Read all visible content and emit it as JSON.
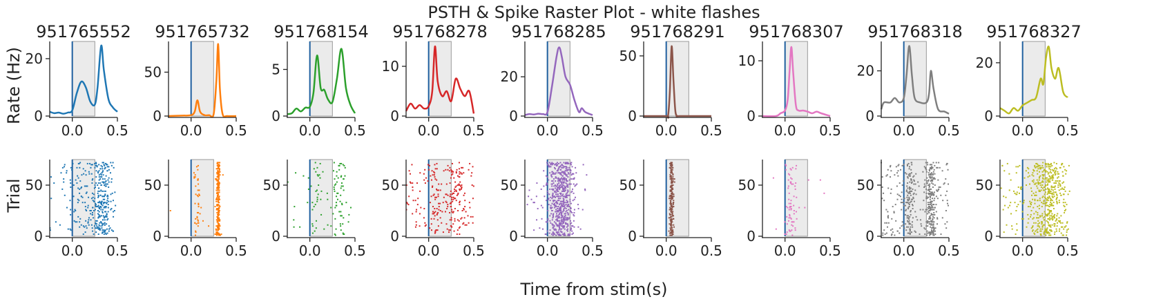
{
  "figure": {
    "suptitle": "PSTH & Spike Raster Plot - white flashes",
    "xlabel": "Time from stim(s)",
    "ylabel_top": "Rate (Hz)",
    "ylabel_bottom": "Trial"
  },
  "chart_data": {
    "type": "line",
    "x_range": [
      -0.25,
      0.5
    ],
    "x_ticks": [
      0.0,
      0.5
    ],
    "x_tick_labels": [
      "0.0",
      "0.5"
    ],
    "stim_window": [
      0.0,
      0.25
    ],
    "raster_ylim": [
      0,
      75
    ],
    "raster_yticks": [
      0,
      50
    ],
    "units": [
      {
        "id": "951765552",
        "color": "#1f77b4",
        "ylim": [
          0,
          26
        ],
        "yticks": [
          0,
          20
        ],
        "psth_t": [
          -0.25,
          -0.2,
          -0.15,
          -0.1,
          -0.05,
          0.0,
          0.05,
          0.1,
          0.15,
          0.2,
          0.25,
          0.28,
          0.32,
          0.35,
          0.4,
          0.45,
          0.5
        ],
        "psth_v": [
          1.5,
          1,
          1.2,
          0.8,
          1.2,
          2,
          8,
          12,
          10,
          5,
          4,
          10,
          24.5,
          16,
          6,
          3,
          1.5
        ],
        "raster": {
          "n": 380,
          "base": 0.15,
          "peaks": [
            [
              0.1,
              0.07,
              0.25
            ],
            [
              0.33,
              0.06,
              0.45
            ]
          ]
        }
      },
      {
        "id": "951765732",
        "color": "#ff7f0e",
        "ylim": [
          0,
          85
        ],
        "yticks": [
          0,
          50
        ],
        "psth_t": [
          -0.25,
          -0.1,
          0.0,
          0.04,
          0.07,
          0.1,
          0.15,
          0.2,
          0.25,
          0.28,
          0.3,
          0.32,
          0.35,
          0.4,
          0.5
        ],
        "psth_v": [
          0,
          0.5,
          1,
          5,
          18,
          5,
          1,
          1,
          2,
          40,
          82,
          30,
          2,
          0,
          0
        ],
        "raster": {
          "n": 300,
          "base": 0.02,
          "peaks": [
            [
              0.07,
              0.02,
              0.15
            ],
            [
              0.3,
              0.01,
              0.83
            ]
          ]
        }
      },
      {
        "id": "951768154",
        "color": "#2ca02c",
        "ylim": [
          0,
          8
        ],
        "yticks": [
          0,
          5
        ],
        "psth_t": [
          -0.25,
          -0.2,
          -0.15,
          -0.1,
          -0.05,
          0.0,
          0.04,
          0.08,
          0.12,
          0.16,
          0.2,
          0.25,
          0.3,
          0.35,
          0.4,
          0.45,
          0.5
        ],
        "psth_v": [
          0.2,
          0.3,
          0.8,
          0.5,
          0.9,
          1,
          2.5,
          6.5,
          3,
          2.8,
          1.8,
          1.5,
          4,
          7.2,
          3,
          1.2,
          0.3
        ],
        "raster": {
          "n": 110,
          "base": 0.2,
          "peaks": [
            [
              0.08,
              0.04,
              0.3
            ],
            [
              0.33,
              0.05,
              0.5
            ]
          ]
        }
      },
      {
        "id": "951768278",
        "color": "#d62728",
        "ylim": [
          0,
          15
        ],
        "yticks": [
          0,
          10
        ],
        "psth_t": [
          -0.25,
          -0.2,
          -0.15,
          -0.1,
          -0.05,
          0.0,
          0.04,
          0.07,
          0.1,
          0.15,
          0.2,
          0.25,
          0.3,
          0.35,
          0.4,
          0.45,
          0.5
        ],
        "psth_v": [
          1,
          2.5,
          1.5,
          2.2,
          1.5,
          2,
          5,
          14,
          7,
          4,
          5,
          3,
          7.5,
          5.5,
          4,
          5,
          0.5
        ],
        "raster": {
          "n": 260,
          "base": 0.45,
          "peaks": [
            [
              0.07,
              0.03,
              0.2
            ],
            [
              0.3,
              0.06,
              0.35
            ]
          ]
        }
      },
      {
        "id": "951768285",
        "color": "#9467bd",
        "ylim": [
          0,
          38
        ],
        "yticks": [
          0,
          20
        ],
        "psth_t": [
          -0.25,
          -0.2,
          -0.15,
          -0.1,
          -0.05,
          0.0,
          0.05,
          0.1,
          0.13,
          0.16,
          0.2,
          0.25,
          0.3,
          0.35,
          0.38,
          0.42,
          0.5
        ],
        "psth_v": [
          0.5,
          1,
          0.8,
          1.2,
          1,
          2,
          15,
          30,
          35,
          30,
          20,
          16,
          8,
          2,
          4,
          2,
          0.5
        ],
        "raster": {
          "n": 650,
          "base": 0.05,
          "peaks": [
            [
              0.15,
              0.08,
              0.95
            ]
          ]
        }
      },
      {
        "id": "951768291",
        "color": "#8c564b",
        "ylim": [
          0,
          62
        ],
        "yticks": [
          0,
          50
        ],
        "psth_t": [
          -0.25,
          0.0,
          0.02,
          0.04,
          0.06,
          0.08,
          0.1,
          0.12,
          0.15,
          0.5
        ],
        "psth_v": [
          0,
          0,
          0,
          20,
          58,
          30,
          5,
          0,
          0,
          0
        ],
        "raster": {
          "n": 230,
          "base": 0.0,
          "peaks": [
            [
              0.06,
              0.012,
              1.0
            ]
          ]
        }
      },
      {
        "id": "951768307",
        "color": "#e377c2",
        "ylim": [
          0,
          13.5
        ],
        "yticks": [
          0,
          10
        ],
        "psth_t": [
          -0.25,
          -0.1,
          -0.05,
          0.0,
          0.03,
          0.05,
          0.07,
          0.09,
          0.12,
          0.15,
          0.2,
          0.25,
          0.3,
          0.35,
          0.4,
          0.5
        ],
        "psth_v": [
          0,
          0,
          0.5,
          1,
          3,
          8,
          12.5,
          8,
          2,
          1,
          1,
          0.8,
          0.5,
          0.8,
          0.5,
          0
        ],
        "raster": {
          "n": 75,
          "base": 0.1,
          "peaks": [
            [
              0.07,
              0.03,
              0.9
            ]
          ]
        }
      },
      {
        "id": "951768318",
        "color": "#7f7f7f",
        "ylim": [
          0,
          33
        ],
        "yticks": [
          0,
          20
        ],
        "psth_t": [
          -0.25,
          -0.22,
          -0.15,
          -0.1,
          -0.05,
          0.0,
          0.03,
          0.06,
          0.09,
          0.12,
          0.18,
          0.25,
          0.28,
          0.3,
          0.33,
          0.38,
          0.45,
          0.5
        ],
        "psth_v": [
          3,
          6,
          6,
          8,
          6,
          8,
          18,
          31,
          18,
          8,
          6,
          6,
          10,
          20,
          12,
          3,
          2,
          1
        ],
        "raster": {
          "n": 500,
          "base": 0.35,
          "peaks": [
            [
              0.06,
              0.025,
              0.35
            ],
            [
              0.3,
              0.03,
              0.3
            ]
          ]
        }
      },
      {
        "id": "951768327",
        "color": "#bcbd22",
        "ylim": [
          0,
          28
        ],
        "yticks": [
          0,
          20
        ],
        "psth_t": [
          -0.25,
          -0.2,
          -0.15,
          -0.1,
          -0.05,
          0.0,
          0.05,
          0.1,
          0.15,
          0.2,
          0.23,
          0.26,
          0.29,
          0.32,
          0.36,
          0.4,
          0.45,
          0.5
        ],
        "psth_v": [
          3,
          2,
          1,
          3,
          2,
          4,
          5,
          6,
          7,
          14,
          12,
          22,
          26,
          18,
          14,
          18,
          9,
          7
        ],
        "raster": {
          "n": 550,
          "base": 0.25,
          "peaks": [
            [
              0.28,
              0.1,
              0.75
            ]
          ]
        }
      }
    ]
  }
}
